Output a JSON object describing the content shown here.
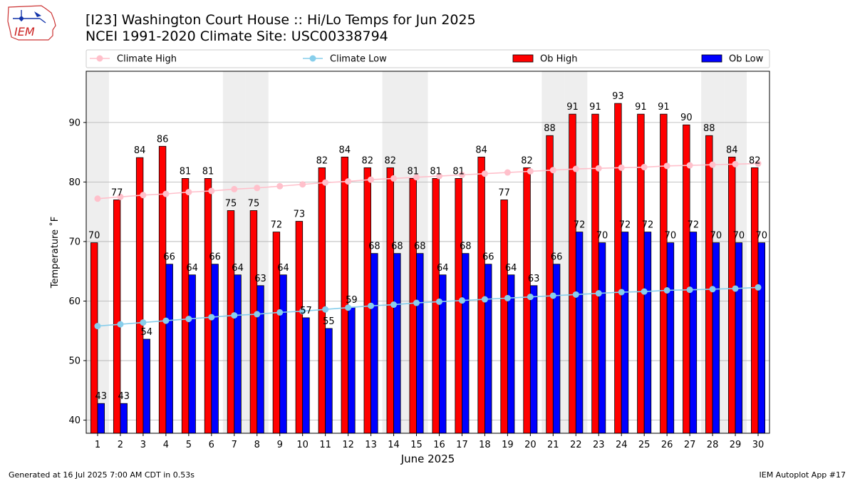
{
  "header": {
    "title_line1": "[I23] Washington Court House :: Hi/Lo Temps for Jun 2025",
    "title_line2": "NCEI 1991-2020 Climate Site: USC00338794"
  },
  "logo": {
    "text": "IEM"
  },
  "footer": {
    "generated": "Generated at 16 Jul 2025 7:00 AM CDT in 0.53s",
    "app": "IEM Autoplot App #17"
  },
  "colors": {
    "climate_high": "#ffc0cb",
    "climate_low": "#87ceeb",
    "ob_high": "#ff0000",
    "ob_low": "#0000ff",
    "weekend_band": "#eeeeee",
    "grid": "#b0b0b0"
  },
  "chart_data": {
    "type": "bar",
    "xlabel": "June 2025",
    "ylabel": "Temperature ˚F",
    "ylim": [
      37.8,
      98.6
    ],
    "xlim": [
      0.5,
      30.5
    ],
    "yticks": [
      40,
      50,
      60,
      70,
      80,
      90
    ],
    "grid": "horizontal",
    "legend": "top",
    "categories": [
      "1",
      "2",
      "3",
      "4",
      "5",
      "6",
      "7",
      "8",
      "9",
      "10",
      "11",
      "12",
      "13",
      "14",
      "15",
      "16",
      "17",
      "18",
      "19",
      "20",
      "21",
      "22",
      "23",
      "24",
      "25",
      "26",
      "27",
      "28",
      "29",
      "30"
    ],
    "weekend_days": [
      1,
      7,
      8,
      14,
      15,
      21,
      22,
      28,
      29
    ],
    "series": [
      {
        "name": "Climate High",
        "kind": "line",
        "values": [
          77.2,
          77.5,
          77.8,
          78.0,
          78.3,
          78.5,
          78.8,
          79.0,
          79.3,
          79.6,
          79.9,
          80.1,
          80.4,
          80.6,
          80.8,
          81.0,
          81.2,
          81.4,
          81.6,
          81.8,
          82.0,
          82.2,
          82.3,
          82.4,
          82.5,
          82.7,
          82.8,
          82.9,
          83.0,
          83.1
        ]
      },
      {
        "name": "Climate Low",
        "kind": "line",
        "values": [
          55.8,
          56.1,
          56.4,
          56.7,
          57.0,
          57.3,
          57.6,
          57.8,
          58.1,
          58.3,
          58.6,
          58.9,
          59.2,
          59.4,
          59.7,
          59.9,
          60.1,
          60.3,
          60.5,
          60.7,
          60.9,
          61.1,
          61.3,
          61.5,
          61.6,
          61.8,
          61.9,
          62.0,
          62.1,
          62.3
        ]
      },
      {
        "name": "Ob High",
        "kind": "bar",
        "values": [
          70,
          77,
          84,
          86,
          81,
          81,
          75,
          75,
          72,
          73,
          82,
          84,
          82,
          82,
          81,
          81,
          81,
          84,
          77,
          82,
          88,
          91,
          91,
          93,
          91,
          91,
          90,
          88,
          84,
          82
        ],
        "plot_values": [
          69.8,
          77.0,
          84.1,
          86.0,
          80.6,
          80.6,
          75.2,
          75.2,
          71.6,
          73.4,
          82.4,
          84.2,
          82.4,
          82.4,
          80.6,
          80.6,
          80.6,
          84.2,
          77.0,
          82.4,
          87.8,
          91.4,
          91.4,
          93.2,
          91.4,
          91.4,
          89.6,
          87.8,
          84.2,
          82.4
        ]
      },
      {
        "name": "Ob Low",
        "kind": "bar",
        "values": [
          43,
          43,
          54,
          66,
          64,
          66,
          64,
          63,
          64,
          57,
          55,
          59,
          68,
          68,
          68,
          64,
          68,
          66,
          64,
          63,
          66,
          72,
          70,
          72,
          72,
          70,
          72,
          70,
          70,
          70
        ],
        "plot_values": [
          42.8,
          42.8,
          53.6,
          66.2,
          64.4,
          66.2,
          64.4,
          62.6,
          64.4,
          57.2,
          55.4,
          59.0,
          68.0,
          68.0,
          68.0,
          64.4,
          68.0,
          66.2,
          64.4,
          62.6,
          66.2,
          71.6,
          69.8,
          71.6,
          71.6,
          69.8,
          71.6,
          69.8,
          69.8,
          69.8
        ]
      }
    ]
  }
}
